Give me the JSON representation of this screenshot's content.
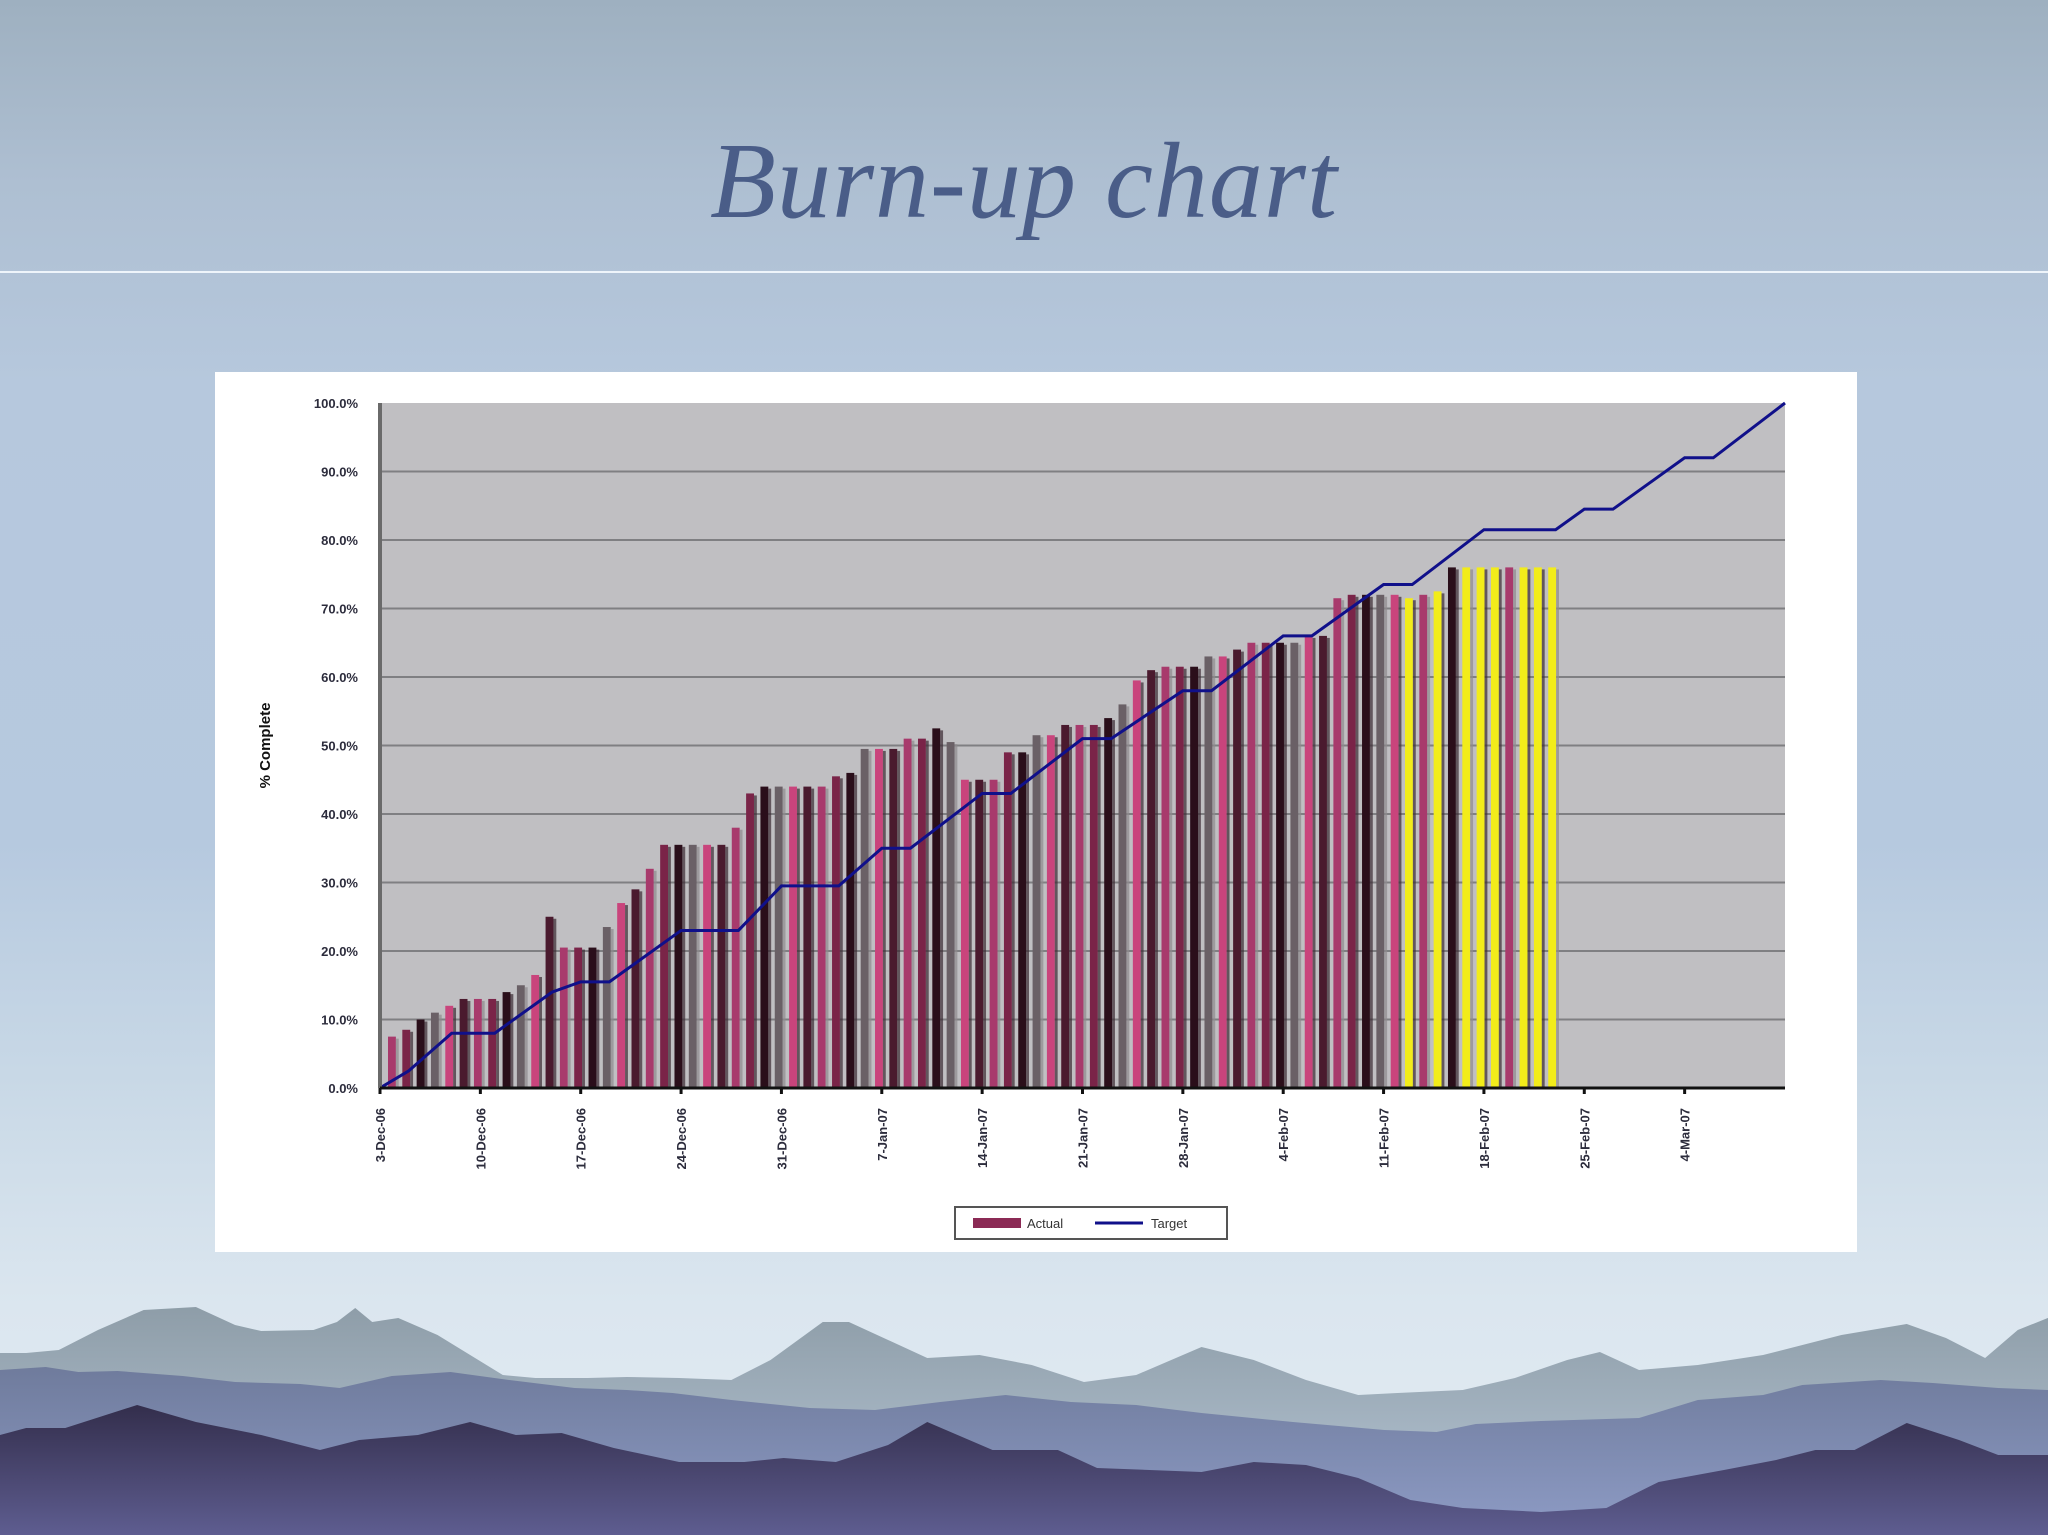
{
  "slide": {
    "title": "Burn-up chart"
  },
  "chart_data": {
    "type": "bar",
    "title": "",
    "xlabel": "",
    "ylabel": "% Complete",
    "ylim": [
      0,
      100
    ],
    "y_ticks": [
      "0.0%",
      "10.0%",
      "20.0%",
      "30.0%",
      "40.0%",
      "50.0%",
      "60.0%",
      "70.0%",
      "80.0%",
      "90.0%",
      "100.0%"
    ],
    "x_ticks": [
      "3-Dec-06",
      "10-Dec-06",
      "17-Dec-06",
      "24-Dec-06",
      "31-Dec-06",
      "7-Jan-07",
      "14-Jan-07",
      "21-Jan-07",
      "28-Jan-07",
      "4-Feb-07",
      "11-Feb-07",
      "18-Feb-07",
      "25-Feb-07",
      "4-Mar-07"
    ],
    "grid": true,
    "legend_position": "bottom",
    "legend": [
      "Actual",
      "Target"
    ],
    "series": [
      {
        "name": "Actual",
        "kind": "bar",
        "color": "#8b2a55",
        "values": [
          7.5,
          8.5,
          10,
          11,
          12,
          13,
          13,
          13,
          14,
          15,
          16.5,
          25,
          20.5,
          20.5,
          20.5,
          23.5,
          27,
          29,
          32,
          35.5,
          35.5,
          35.5,
          35.5,
          35.5,
          38,
          43,
          44,
          44,
          44,
          44,
          44,
          45.5,
          46,
          49.5,
          49.5,
          49.5,
          51,
          51,
          52.5,
          50.5,
          45,
          45,
          45,
          49,
          49,
          51.5,
          51.5,
          53,
          53,
          53,
          54,
          56,
          59.5,
          61,
          61.5,
          61.5,
          61.5,
          63,
          63,
          64,
          65,
          65,
          65,
          65,
          66,
          66,
          71.5,
          72,
          72,
          72,
          72,
          71.5,
          72,
          72.5,
          76,
          76,
          76,
          76,
          76,
          76,
          76,
          76
        ],
        "projected_from_index": 71,
        "projected_color": "#f2ec1a"
      },
      {
        "name": "Target",
        "kind": "line",
        "color": "#10108a",
        "points": [
          {
            "day": 0,
            "value": 0
          },
          {
            "day": 2,
            "value": 2.5
          },
          {
            "day": 5,
            "value": 8
          },
          {
            "day": 8,
            "value": 8
          },
          {
            "day": 12,
            "value": 14
          },
          {
            "day": 14,
            "value": 15.5
          },
          {
            "day": 16,
            "value": 15.5
          },
          {
            "day": 21,
            "value": 23
          },
          {
            "day": 25,
            "value": 23
          },
          {
            "day": 28,
            "value": 29.5
          },
          {
            "day": 32,
            "value": 29.5
          },
          {
            "day": 35,
            "value": 35
          },
          {
            "day": 37,
            "value": 35
          },
          {
            "day": 42,
            "value": 43
          },
          {
            "day": 44,
            "value": 43
          },
          {
            "day": 49,
            "value": 51
          },
          {
            "day": 51,
            "value": 51
          },
          {
            "day": 56,
            "value": 58
          },
          {
            "day": 58,
            "value": 58
          },
          {
            "day": 63,
            "value": 66
          },
          {
            "day": 65,
            "value": 66
          },
          {
            "day": 70,
            "value": 73.5
          },
          {
            "day": 72,
            "value": 73.5
          },
          {
            "day": 77,
            "value": 81.5
          },
          {
            "day": 82,
            "value": 81.5
          },
          {
            "day": 84,
            "value": 84.5
          },
          {
            "day": 86,
            "value": 84.5
          },
          {
            "day": 91,
            "value": 92
          },
          {
            "day": 93,
            "value": 92
          },
          {
            "day": 98,
            "value": 100
          }
        ]
      }
    ]
  }
}
